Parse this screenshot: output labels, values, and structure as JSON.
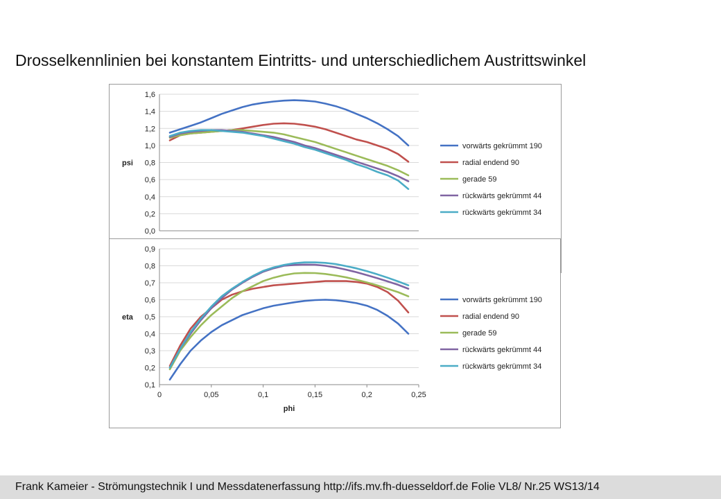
{
  "slide": {
    "title": "Drosselkennlinien bei konstantem Eintritts- und unterschiedlichem Austrittswinkel",
    "footer": "Frank Kameier - Strömungstechnik I und Messdatenerfassung  http://ifs.mv.fh-duesseldorf.de Folie VL8/ Nr.25 WS13/14"
  },
  "colors": {
    "vorwaerts": "#4472C4",
    "radial": "#C0504D",
    "gerade": "#9BBB59",
    "rueck44": "#8064A2",
    "rueck34": "#4BACC6",
    "grid": "#d9d9d9"
  },
  "chart_data": [
    {
      "type": "line",
      "ylabel": "psi",
      "xlabel": "",
      "xlim": [
        0,
        0.25
      ],
      "ylim": [
        0,
        1.6
      ],
      "yticks": [
        "0,0",
        "0,2",
        "0,4",
        "0,6",
        "0,8",
        "1,0",
        "1,2",
        "1,4",
        "1,6"
      ],
      "grid": true,
      "legend": "right",
      "x": [
        0.01,
        0.02,
        0.03,
        0.04,
        0.05,
        0.06,
        0.07,
        0.08,
        0.09,
        0.1,
        0.11,
        0.12,
        0.13,
        0.14,
        0.15,
        0.16,
        0.17,
        0.18,
        0.19,
        0.2,
        0.21,
        0.22,
        0.23,
        0.24
      ],
      "series": [
        {
          "name": "vorwärts gekrümmt 190",
          "color_key": "vorwaerts",
          "values": [
            1.15,
            1.19,
            1.23,
            1.27,
            1.32,
            1.37,
            1.41,
            1.45,
            1.48,
            1.5,
            1.515,
            1.525,
            1.53,
            1.525,
            1.515,
            1.49,
            1.46,
            1.42,
            1.37,
            1.32,
            1.26,
            1.19,
            1.11,
            1.0
          ]
        },
        {
          "name": "radial endend 90",
          "color_key": "radial",
          "values": [
            1.06,
            1.12,
            1.14,
            1.15,
            1.16,
            1.17,
            1.18,
            1.2,
            1.22,
            1.24,
            1.255,
            1.26,
            1.255,
            1.24,
            1.22,
            1.19,
            1.15,
            1.11,
            1.07,
            1.04,
            1.0,
            0.96,
            0.9,
            0.81
          ]
        },
        {
          "name": "gerade 59",
          "color_key": "gerade",
          "values": [
            1.09,
            1.12,
            1.14,
            1.15,
            1.16,
            1.17,
            1.18,
            1.18,
            1.17,
            1.16,
            1.15,
            1.13,
            1.1,
            1.07,
            1.04,
            1.0,
            0.96,
            0.92,
            0.88,
            0.84,
            0.8,
            0.76,
            0.71,
            0.65
          ]
        },
        {
          "name": "rückwärts gekrümmt 44",
          "color_key": "rueck44",
          "values": [
            1.1,
            1.14,
            1.16,
            1.17,
            1.18,
            1.18,
            1.17,
            1.16,
            1.14,
            1.12,
            1.1,
            1.07,
            1.04,
            1.0,
            0.97,
            0.93,
            0.89,
            0.85,
            0.81,
            0.77,
            0.73,
            0.69,
            0.64,
            0.58
          ]
        },
        {
          "name": "rückwärts gekrümmt 34",
          "color_key": "rueck34",
          "values": [
            1.11,
            1.15,
            1.17,
            1.18,
            1.18,
            1.17,
            1.16,
            1.15,
            1.13,
            1.11,
            1.08,
            1.05,
            1.02,
            0.98,
            0.95,
            0.91,
            0.87,
            0.83,
            0.78,
            0.74,
            0.69,
            0.65,
            0.59,
            0.49
          ]
        }
      ]
    },
    {
      "type": "line",
      "ylabel": "eta",
      "xlabel": "phi",
      "xlim": [
        0,
        0.25
      ],
      "ylim": [
        0.1,
        0.9
      ],
      "xticks": [
        "0",
        "0,05",
        "0,1",
        "0,15",
        "0,2",
        "0,25"
      ],
      "yticks": [
        "0,1",
        "0,2",
        "0,3",
        "0,4",
        "0,5",
        "0,6",
        "0,7",
        "0,8",
        "0,9"
      ],
      "grid": true,
      "legend": "right",
      "x": [
        0.01,
        0.02,
        0.03,
        0.04,
        0.05,
        0.06,
        0.07,
        0.08,
        0.09,
        0.1,
        0.11,
        0.12,
        0.13,
        0.14,
        0.15,
        0.16,
        0.17,
        0.18,
        0.19,
        0.2,
        0.21,
        0.22,
        0.23,
        0.24
      ],
      "series": [
        {
          "name": "vorwärts gekrümmt 190",
          "color_key": "vorwaerts",
          "values": [
            0.13,
            0.22,
            0.3,
            0.36,
            0.41,
            0.45,
            0.48,
            0.51,
            0.53,
            0.55,
            0.565,
            0.575,
            0.585,
            0.593,
            0.598,
            0.6,
            0.597,
            0.59,
            0.58,
            0.565,
            0.54,
            0.505,
            0.46,
            0.4
          ]
        },
        {
          "name": "radial endend 90",
          "color_key": "radial",
          "values": [
            0.21,
            0.33,
            0.43,
            0.5,
            0.55,
            0.6,
            0.63,
            0.65,
            0.665,
            0.675,
            0.685,
            0.69,
            0.695,
            0.7,
            0.705,
            0.71,
            0.71,
            0.71,
            0.705,
            0.695,
            0.675,
            0.645,
            0.595,
            0.525
          ]
        },
        {
          "name": "gerade 59",
          "color_key": "gerade",
          "values": [
            0.19,
            0.3,
            0.38,
            0.45,
            0.51,
            0.56,
            0.61,
            0.65,
            0.68,
            0.71,
            0.73,
            0.745,
            0.755,
            0.758,
            0.757,
            0.752,
            0.743,
            0.732,
            0.718,
            0.702,
            0.685,
            0.665,
            0.645,
            0.62
          ]
        },
        {
          "name": "rückwärts gekrümmt 44",
          "color_key": "rueck44",
          "values": [
            0.2,
            0.31,
            0.4,
            0.48,
            0.55,
            0.61,
            0.66,
            0.7,
            0.735,
            0.765,
            0.785,
            0.8,
            0.805,
            0.807,
            0.806,
            0.8,
            0.79,
            0.777,
            0.762,
            0.745,
            0.727,
            0.708,
            0.688,
            0.665
          ]
        },
        {
          "name": "rückwärts gekrümmt 34",
          "color_key": "rueck34",
          "values": [
            0.2,
            0.31,
            0.41,
            0.49,
            0.56,
            0.62,
            0.665,
            0.705,
            0.74,
            0.77,
            0.79,
            0.805,
            0.815,
            0.82,
            0.82,
            0.817,
            0.81,
            0.798,
            0.785,
            0.768,
            0.75,
            0.73,
            0.708,
            0.685
          ]
        }
      ]
    }
  ]
}
